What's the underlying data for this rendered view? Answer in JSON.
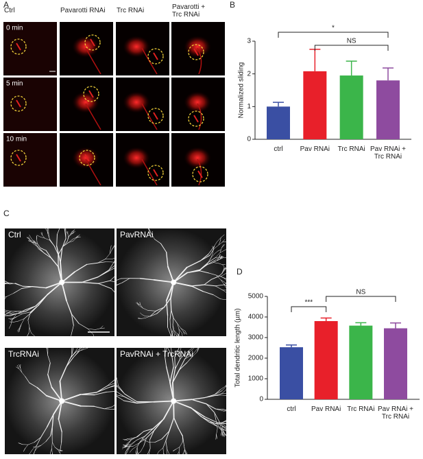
{
  "panels": {
    "A": {
      "label": "A",
      "columns": [
        "Ctrl",
        "Pavarotti RNAi",
        "Trc RNAi",
        "Pavarotti +\nTrc RNAi"
      ],
      "rows": [
        "0 min",
        "5 min",
        "10 min"
      ]
    },
    "C": {
      "label": "C",
      "images": [
        "Ctrl",
        "PavRNAi",
        "TrcRNAi",
        "PavRNAi + TrcRNAi"
      ]
    }
  },
  "chart_data": [
    {
      "type": "bar",
      "panel": "B",
      "y_label": "Normalized sliding",
      "categories": [
        "ctrl",
        "Pav RNAi",
        "Trc RNAi",
        "Pav RNAi +\nTrc RNAi"
      ],
      "values": [
        1.0,
        2.08,
        1.95,
        1.8
      ],
      "errors": [
        0.13,
        0.67,
        0.44,
        0.38
      ],
      "colors": [
        "#3a4fa3",
        "#e8202a",
        "#3bb54a",
        "#8e4b9f"
      ],
      "ylim": [
        0,
        3
      ],
      "yticks": [
        0,
        1,
        2,
        3
      ],
      "annotations": [
        {
          "text": "*",
          "from": 0,
          "to": 3
        },
        {
          "text": "NS",
          "from": 1,
          "to": 3
        }
      ]
    },
    {
      "type": "bar",
      "panel": "D",
      "y_label": "Total dendritic length (µm)",
      "categories": [
        "ctrl",
        "Pav RNAi",
        "Trc RNAi",
        "Pav RNAi +\nTrc RNAi"
      ],
      "values": [
        2530,
        3800,
        3580,
        3450
      ],
      "errors": [
        110,
        150,
        140,
        260
      ],
      "colors": [
        "#3a4fa3",
        "#e8202a",
        "#3bb54a",
        "#8e4b9f"
      ],
      "ylim": [
        0,
        5000
      ],
      "yticks": [
        0,
        1000,
        2000,
        3000,
        4000,
        5000
      ],
      "annotations": [
        {
          "text": "***",
          "from": 0,
          "to": 1
        },
        {
          "text": "NS",
          "from": 1,
          "to": 3
        }
      ]
    }
  ]
}
